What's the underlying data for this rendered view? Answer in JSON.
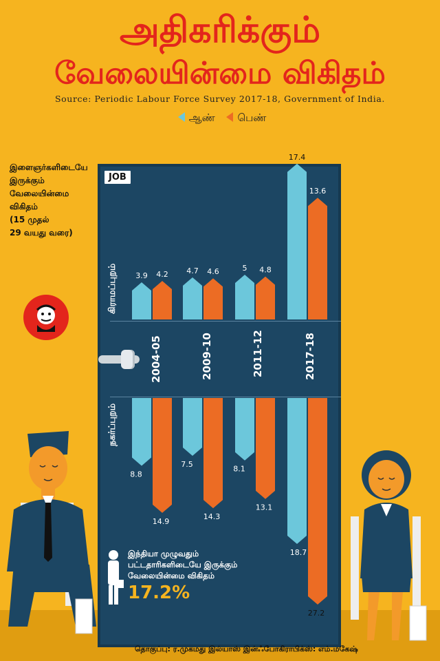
{
  "title_line1": "அதிகரிக்கும்",
  "title_line2": "வேலையின்மை  விகிதம்",
  "source": "Source: Periodic Labour Force Survey 2017-18, Government of India.",
  "legend": {
    "male": "ஆண்",
    "female": "பெண்"
  },
  "y_description": [
    "இளைஞர்களிடையே",
    "இருக்கும்",
    "வேலையின்மை",
    "விகிதம்",
    "(15 முதல்",
    "29 வயது வரை)"
  ],
  "door_tag": "JOB",
  "colors": {
    "male": "#6cc7db",
    "female": "#ec6c24",
    "title": "#e3251c",
    "door": "#1c4663",
    "background": "#f6b41f"
  },
  "note": {
    "line1": "இந்தியா முழுவதும்",
    "line2": "பட்டதாரிகளிடையே இருக்கும்",
    "line3": "வேலையின்மை விகிதம்",
    "value": "17.2%"
  },
  "credit": "தொகுப்பு: ர.முகமது இல்யாஸ் இன்ஃபோகிராபிக்ஸ்: எம்.மகேஷ்",
  "chart_data": {
    "type": "bar",
    "categories": [
      "2004-05",
      "2009-10",
      "2011-12",
      "2017-18"
    ],
    "groups": [
      {
        "name": "கிராமப்புறம்",
        "series": [
          {
            "name": "ஆண்",
            "values": [
              3.9,
              4.7,
              5,
              17.4
            ]
          },
          {
            "name": "பெண்",
            "values": [
              4.2,
              4.6,
              4.8,
              13.6
            ]
          }
        ]
      },
      {
        "name": "நகர்ப்புறம்",
        "series": [
          {
            "name": "ஆண்",
            "values": [
              8.8,
              7.5,
              8.1,
              18.7
            ]
          },
          {
            "name": "பெண்",
            "values": [
              14.9,
              14.3,
              13.1,
              27.2
            ]
          }
        ]
      }
    ]
  }
}
